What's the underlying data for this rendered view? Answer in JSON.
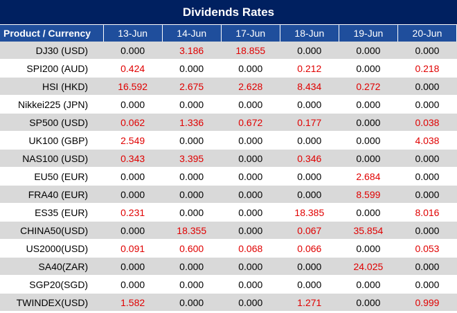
{
  "title": "Dividends Rates",
  "header": {
    "first": "Product / Currency",
    "dates": [
      "13-Jun",
      "14-Jun",
      "17-Jun",
      "18-Jun",
      "19-Jun",
      "20-Jun"
    ]
  },
  "colors": {
    "title_bg": "#002060",
    "header_bg": "#1f4e9c",
    "stripe": "#d9d9d9",
    "nonzero_value": "#e00000"
  },
  "rows": [
    {
      "label": "DJ30 (USD)",
      "values": [
        "0.000",
        "3.186",
        "18.855",
        "0.000",
        "0.000",
        "0.000"
      ]
    },
    {
      "label": "SPI200 (AUD)",
      "values": [
        "0.424",
        "0.000",
        "0.000",
        "0.212",
        "0.000",
        "0.218"
      ]
    },
    {
      "label": "HSI (HKD)",
      "values": [
        "16.592",
        "2.675",
        "2.628",
        "8.434",
        "0.272",
        "0.000"
      ]
    },
    {
      "label": "Nikkei225 (JPN)",
      "values": [
        "0.000",
        "0.000",
        "0.000",
        "0.000",
        "0.000",
        "0.000"
      ]
    },
    {
      "label": "SP500 (USD)",
      "values": [
        "0.062",
        "1.336",
        "0.672",
        "0.177",
        "0.000",
        "0.038"
      ]
    },
    {
      "label": "UK100 (GBP)",
      "values": [
        "2.549",
        "0.000",
        "0.000",
        "0.000",
        "0.000",
        "4.038"
      ]
    },
    {
      "label": "NAS100 (USD)",
      "values": [
        "0.343",
        "3.395",
        "0.000",
        "0.346",
        "0.000",
        "0.000"
      ]
    },
    {
      "label": "EU50 (EUR)",
      "values": [
        "0.000",
        "0.000",
        "0.000",
        "0.000",
        "2.684",
        "0.000"
      ]
    },
    {
      "label": "FRA40 (EUR)",
      "values": [
        "0.000",
        "0.000",
        "0.000",
        "0.000",
        "8.599",
        "0.000"
      ]
    },
    {
      "label": "ES35 (EUR)",
      "values": [
        "0.231",
        "0.000",
        "0.000",
        "18.385",
        "0.000",
        "8.016"
      ]
    },
    {
      "label": "CHINA50(USD)",
      "values": [
        "0.000",
        "18.355",
        "0.000",
        "0.067",
        "35.854",
        "0.000"
      ]
    },
    {
      "label": "US2000(USD)",
      "values": [
        "0.091",
        "0.600",
        "0.068",
        "0.066",
        "0.000",
        "0.053"
      ]
    },
    {
      "label": "SA40(ZAR)",
      "values": [
        "0.000",
        "0.000",
        "0.000",
        "0.000",
        "24.025",
        "0.000"
      ]
    },
    {
      "label": "SGP20(SGD)",
      "values": [
        "0.000",
        "0.000",
        "0.000",
        "0.000",
        "0.000",
        "0.000"
      ]
    },
    {
      "label": "TWINDEX(USD)",
      "values": [
        "1.582",
        "0.000",
        "0.000",
        "1.271",
        "0.000",
        "0.999"
      ]
    }
  ]
}
